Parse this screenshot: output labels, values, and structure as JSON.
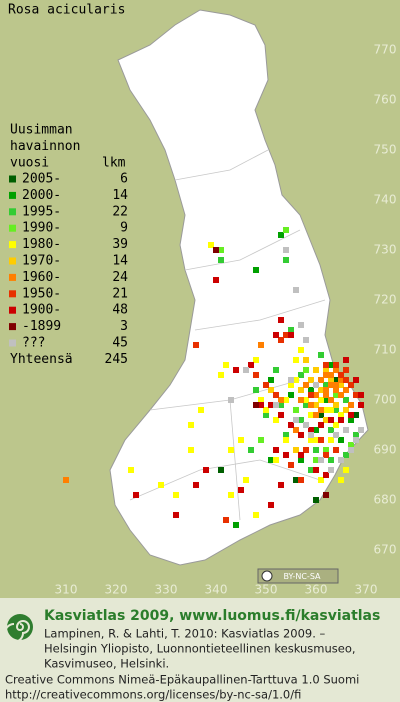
{
  "title": "Rosa acicularis",
  "legend": {
    "heading": [
      "Uusimman",
      "havainnon",
      "vuosi"
    ],
    "count_heading": "lkm",
    "items": [
      {
        "label": "2005-",
        "count": 6,
        "color": "#005f00",
        "points": [
          [
            364,
            704
          ],
          [
            356,
            684
          ],
          [
            341,
            686
          ],
          [
            361,
            697
          ],
          [
            368,
            697
          ],
          [
            360,
            680
          ]
        ]
      },
      {
        "label": "2000-",
        "count": 14,
        "color": "#00a000",
        "points": [
          [
            348,
            726
          ],
          [
            353,
            733
          ],
          [
            363,
            707
          ],
          [
            359,
            702
          ],
          [
            367,
            696
          ],
          [
            366,
            694
          ],
          [
            351,
            688
          ],
          [
            344,
            675
          ],
          [
            357,
            688
          ],
          [
            362,
            700
          ],
          [
            360,
            694
          ],
          [
            365,
            692
          ],
          [
            351,
            704
          ],
          [
            355,
            701
          ]
        ]
      },
      {
        "label": "1995-",
        "count": 22,
        "color": "#33cc33",
        "points": [
          [
            341,
            728
          ],
          [
            354,
            728
          ],
          [
            357,
            705
          ],
          [
            362,
            703
          ],
          [
            358,
            699
          ],
          [
            364,
            698
          ],
          [
            366,
            700
          ],
          [
            360,
            690
          ],
          [
            363,
            688
          ],
          [
            347,
            690
          ],
          [
            354,
            693
          ],
          [
            350,
            697
          ],
          [
            361,
            709
          ],
          [
            355,
            714
          ],
          [
            352,
            706
          ],
          [
            368,
            693
          ],
          [
            357,
            696
          ],
          [
            363,
            694
          ],
          [
            359,
            686
          ],
          [
            366,
            689
          ],
          [
            348,
            702
          ],
          [
            353,
            699
          ]
        ]
      },
      {
        "label": "1990-",
        "count": 9,
        "color": "#66ee22",
        "points": [
          [
            354,
            734
          ],
          [
            341,
            730
          ],
          [
            358,
            706
          ],
          [
            364,
            701
          ],
          [
            360,
            688
          ],
          [
            349,
            692
          ],
          [
            367,
            691
          ],
          [
            356,
            698
          ],
          [
            362,
            690
          ]
        ]
      },
      {
        "label": "1980-",
        "count": 39,
        "color": "#ffff00",
        "points": [
          [
            339,
            731
          ],
          [
            338,
            686
          ],
          [
            335,
            690
          ],
          [
            343,
            690
          ],
          [
            345,
            692
          ],
          [
            341,
            705
          ],
          [
            342,
            707
          ],
          [
            348,
            708
          ],
          [
            349,
            700
          ],
          [
            350,
            698
          ],
          [
            352,
            696
          ],
          [
            354,
            700
          ],
          [
            355,
            703
          ],
          [
            356,
            708
          ],
          [
            357,
            710
          ],
          [
            358,
            700
          ],
          [
            359,
            697
          ],
          [
            360,
            692
          ],
          [
            361,
            700
          ],
          [
            362,
            698
          ],
          [
            363,
            698
          ],
          [
            364,
            695
          ],
          [
            365,
            697
          ],
          [
            366,
            686
          ],
          [
            346,
            684
          ],
          [
            343,
            681
          ],
          [
            332,
            681
          ],
          [
            329,
            683
          ],
          [
            323,
            686
          ],
          [
            335,
            695
          ],
          [
            337,
            698
          ],
          [
            352,
            688
          ],
          [
            348,
            677
          ],
          [
            354,
            692
          ],
          [
            356,
            704
          ],
          [
            363,
            692
          ],
          [
            365,
            684
          ],
          [
            359,
            692
          ],
          [
            361,
            684
          ]
        ]
      },
      {
        "label": "1970-",
        "count": 14,
        "color": "#ffcc00",
        "points": [
          [
            362,
            706
          ],
          [
            363,
            704
          ],
          [
            365,
            703
          ],
          [
            361,
            702
          ],
          [
            359,
            704
          ],
          [
            357,
            702
          ],
          [
            360,
            699
          ],
          [
            362,
            696
          ],
          [
            364,
            699
          ],
          [
            358,
            708
          ],
          [
            356,
            690
          ],
          [
            351,
            702
          ],
          [
            360,
            706
          ],
          [
            366,
            698
          ]
        ]
      },
      {
        "label": "1960-",
        "count": 24,
        "color": "#ff7f00",
        "points": [
          [
            362,
            705
          ],
          [
            363,
            705
          ],
          [
            364,
            706
          ],
          [
            363,
            703
          ],
          [
            364,
            703
          ],
          [
            365,
            704
          ],
          [
            361,
            704
          ],
          [
            362,
            702
          ],
          [
            360,
            701
          ],
          [
            359,
            699
          ],
          [
            363,
            700
          ],
          [
            365,
            701
          ],
          [
            366,
            702
          ],
          [
            357,
            700
          ],
          [
            349,
            711
          ],
          [
            353,
            700
          ],
          [
            358,
            703
          ],
          [
            361,
            698
          ],
          [
            364,
            702
          ],
          [
            362,
            701
          ],
          [
            310,
            684
          ],
          [
            356,
            694
          ],
          [
            360,
            697
          ],
          [
            367,
            699
          ]
        ]
      },
      {
        "label": "1950-",
        "count": 21,
        "color": "#e83000",
        "points": [
          [
            362,
            707
          ],
          [
            364,
            707
          ],
          [
            366,
            706
          ],
          [
            365,
            705
          ],
          [
            367,
            703
          ],
          [
            368,
            701
          ],
          [
            366,
            704
          ],
          [
            359,
            701
          ],
          [
            353,
            712
          ],
          [
            354,
            713
          ],
          [
            348,
            705
          ],
          [
            350,
            703
          ],
          [
            352,
            701
          ],
          [
            358,
            690
          ],
          [
            361,
            692
          ],
          [
            355,
            687
          ],
          [
            357,
            684
          ],
          [
            362,
            689
          ],
          [
            364,
            690
          ],
          [
            342,
            676
          ],
          [
            336,
            711
          ]
        ]
      },
      {
        "label": "1900-",
        "count": 48,
        "color": "#cc0000",
        "points": [
          [
            340,
            724
          ],
          [
            353,
            716
          ],
          [
            352,
            713
          ],
          [
            355,
            713
          ],
          [
            347,
            707
          ],
          [
            349,
            699
          ],
          [
            351,
            699
          ],
          [
            353,
            697
          ],
          [
            355,
            695
          ],
          [
            357,
            693
          ],
          [
            359,
            694
          ],
          [
            361,
            695
          ],
          [
            363,
            696
          ],
          [
            365,
            696
          ],
          [
            367,
            697
          ],
          [
            369,
            699
          ],
          [
            369,
            701
          ],
          [
            368,
            704
          ],
          [
            366,
            708
          ],
          [
            352,
            690
          ],
          [
            354,
            689
          ],
          [
            357,
            689
          ],
          [
            360,
            686
          ],
          [
            362,
            685
          ],
          [
            353,
            683
          ],
          [
            351,
            679
          ],
          [
            345,
            682
          ],
          [
            336,
            683
          ],
          [
            332,
            677
          ],
          [
            324,
            681
          ],
          [
            344,
            706
          ],
          [
            338,
            686
          ]
        ]
      },
      {
        "label": "-1899",
        "count": 3,
        "color": "#7f0000",
        "points": [
          [
            340,
            730
          ],
          [
            362,
            681
          ],
          [
            348,
            699
          ]
        ]
      },
      {
        "label": "???",
        "count": 45,
        "color": "#c0c0c0",
        "points": [
          [
            354,
            730
          ],
          [
            356,
            722
          ],
          [
            357,
            715
          ],
          [
            358,
            712
          ],
          [
            346,
            706
          ],
          [
            343,
            700
          ],
          [
            356,
            696
          ],
          [
            358,
            695
          ],
          [
            359,
            693
          ],
          [
            361,
            688
          ],
          [
            363,
            686
          ],
          [
            365,
            688
          ],
          [
            367,
            690
          ],
          [
            368,
            692
          ],
          [
            369,
            694
          ],
          [
            360,
            703
          ],
          [
            364,
            693
          ],
          [
            366,
            694
          ],
          [
            355,
            704
          ],
          [
            352,
            699
          ]
        ]
      }
    ],
    "total_label": "Yhteensä",
    "total": 245
  },
  "xticks": [
    310,
    320,
    330,
    340,
    350,
    360,
    370
  ],
  "yticks": [
    770,
    760,
    750,
    740,
    730,
    720,
    710,
    700,
    690,
    680,
    670
  ],
  "license_badge": "BY-NC-SA",
  "footer": {
    "title": "Kasviatlas 2009, www.luomus.fi/kasviatlas",
    "citation": [
      "Lampinen, R. & Lahti, T. 2010: Kasviatlas 2009. –",
      "Helsingin Yliopisto, Luonnontieteellinen keskusmuseo,",
      "Kasvimuseo, Helsinki."
    ],
    "license": [
      "Creative Commons Nimeä-Epäkaupallinen-Tarttuva 1.0 Suomi",
      "http://creativecommons.org/licenses/by-nc-sa/1.0/fi"
    ]
  }
}
